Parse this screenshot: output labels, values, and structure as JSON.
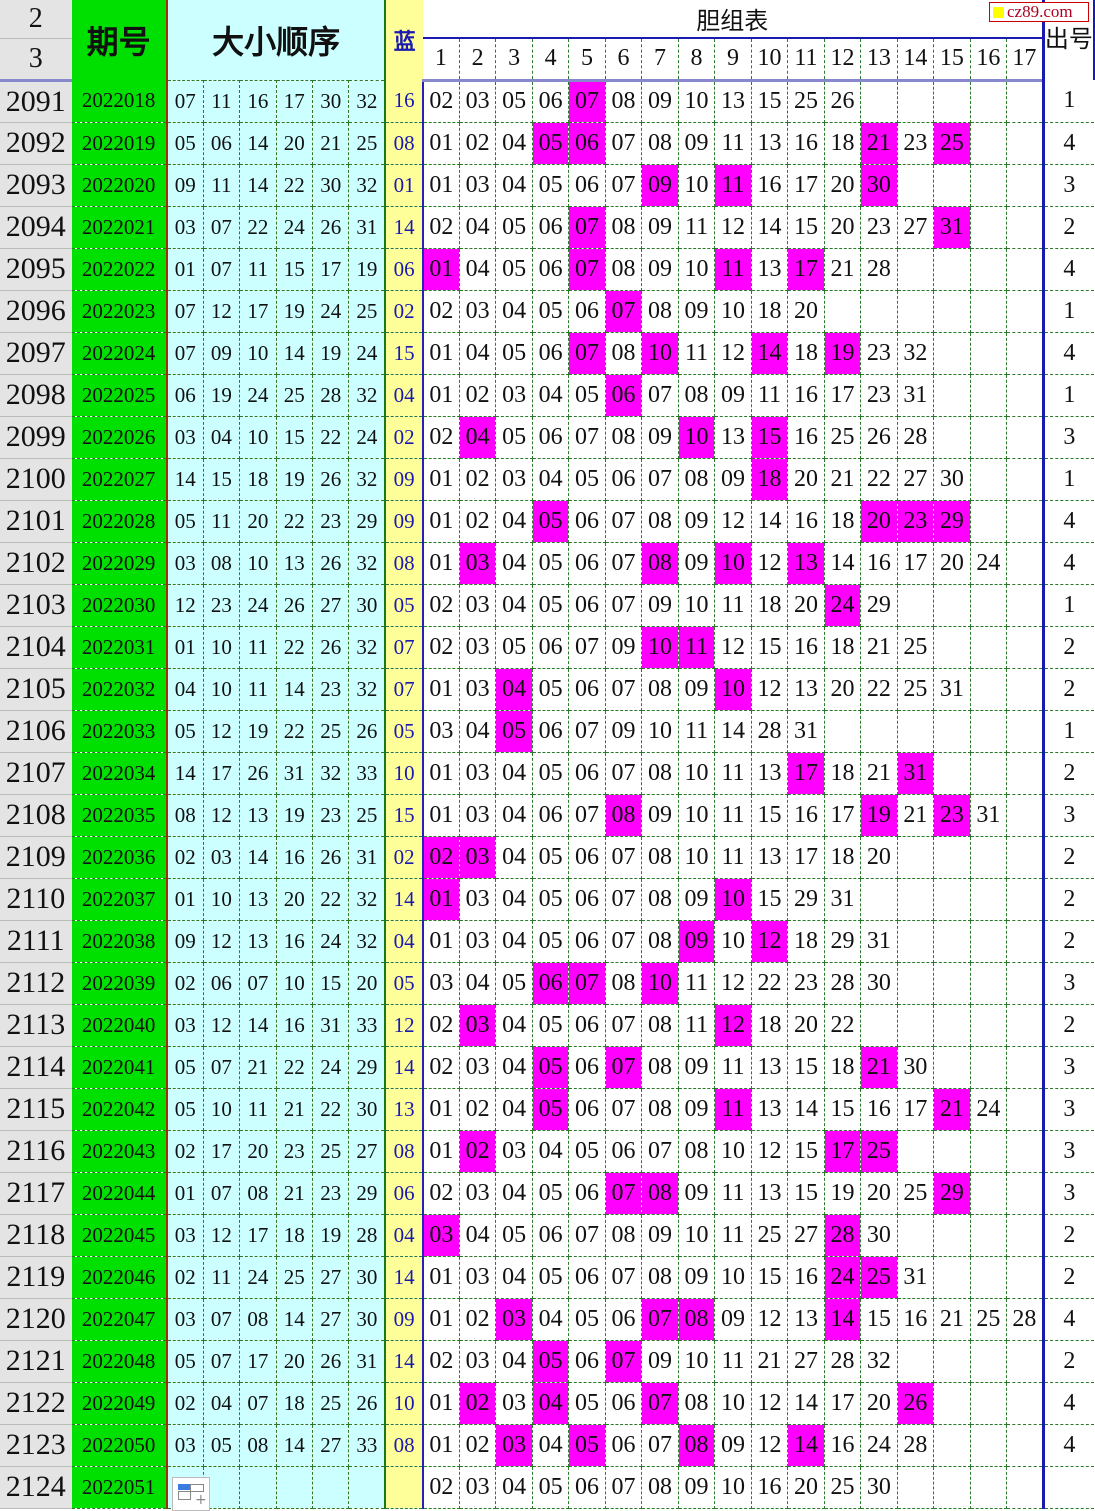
{
  "header": {
    "row_numbers": [
      "2",
      "3"
    ],
    "period_label": "期号",
    "order_label": "大小顺序",
    "blue_label": "蓝",
    "table_title": "胆组表",
    "column_numbers": [
      "1",
      "2",
      "3",
      "4",
      "5",
      "6",
      "7",
      "8",
      "9",
      "10",
      "11",
      "12",
      "13",
      "14",
      "15",
      "16",
      "17"
    ],
    "count_label": "出号"
  },
  "watermark": "cz89.com",
  "colors": {
    "highlight": "#ff00ff",
    "period_bg": "#00e000",
    "order_bg": "#ccffff",
    "blue_bg": "#ffff99"
  },
  "rows": [
    {
      "row": "2091",
      "period": "2022018",
      "draw": [
        "07",
        "11",
        "16",
        "17",
        "30",
        "32"
      ],
      "blue": "16",
      "group": [
        "02",
        "03",
        "05",
        "06",
        "07",
        "08",
        "09",
        "10",
        "13",
        "15",
        "25",
        "26"
      ],
      "count": "1"
    },
    {
      "row": "2092",
      "period": "2022019",
      "draw": [
        "05",
        "06",
        "14",
        "20",
        "21",
        "25"
      ],
      "blue": "08",
      "group": [
        "01",
        "02",
        "04",
        "05",
        "06",
        "07",
        "08",
        "09",
        "11",
        "13",
        "16",
        "18",
        "21",
        "23",
        "25"
      ],
      "count": "4"
    },
    {
      "row": "2093",
      "period": "2022020",
      "draw": [
        "09",
        "11",
        "14",
        "22",
        "30",
        "32"
      ],
      "blue": "01",
      "group": [
        "01",
        "03",
        "04",
        "05",
        "06",
        "07",
        "09",
        "10",
        "11",
        "16",
        "17",
        "20",
        "30"
      ],
      "count": "3"
    },
    {
      "row": "2094",
      "period": "2022021",
      "draw": [
        "03",
        "07",
        "22",
        "24",
        "26",
        "31"
      ],
      "blue": "14",
      "group": [
        "02",
        "04",
        "05",
        "06",
        "07",
        "08",
        "09",
        "11",
        "12",
        "14",
        "15",
        "20",
        "23",
        "27",
        "31"
      ],
      "count": "2"
    },
    {
      "row": "2095",
      "period": "2022022",
      "draw": [
        "01",
        "07",
        "11",
        "15",
        "17",
        "19"
      ],
      "blue": "06",
      "group": [
        "01",
        "04",
        "05",
        "06",
        "07",
        "08",
        "09",
        "10",
        "11",
        "13",
        "17",
        "21",
        "28"
      ],
      "count": "4"
    },
    {
      "row": "2096",
      "period": "2022023",
      "draw": [
        "07",
        "12",
        "17",
        "19",
        "24",
        "25"
      ],
      "blue": "02",
      "group": [
        "02",
        "03",
        "04",
        "05",
        "06",
        "07",
        "08",
        "09",
        "10",
        "18",
        "20"
      ],
      "count": "1"
    },
    {
      "row": "2097",
      "period": "2022024",
      "draw": [
        "07",
        "09",
        "10",
        "14",
        "19",
        "24"
      ],
      "blue": "15",
      "group": [
        "01",
        "04",
        "05",
        "06",
        "07",
        "08",
        "10",
        "11",
        "12",
        "14",
        "18",
        "19",
        "23",
        "32"
      ],
      "count": "4"
    },
    {
      "row": "2098",
      "period": "2022025",
      "draw": [
        "06",
        "19",
        "24",
        "25",
        "28",
        "32"
      ],
      "blue": "04",
      "group": [
        "01",
        "02",
        "03",
        "04",
        "05",
        "06",
        "07",
        "08",
        "09",
        "11",
        "16",
        "17",
        "23",
        "31"
      ],
      "count": "1"
    },
    {
      "row": "2099",
      "period": "2022026",
      "draw": [
        "03",
        "04",
        "10",
        "15",
        "22",
        "24"
      ],
      "blue": "02",
      "group": [
        "02",
        "04",
        "05",
        "06",
        "07",
        "08",
        "09",
        "10",
        "13",
        "15",
        "16",
        "25",
        "26",
        "28"
      ],
      "count": "3"
    },
    {
      "row": "2100",
      "period": "2022027",
      "draw": [
        "14",
        "15",
        "18",
        "19",
        "26",
        "32"
      ],
      "blue": "09",
      "group": [
        "01",
        "02",
        "03",
        "04",
        "05",
        "06",
        "07",
        "08",
        "09",
        "18",
        "20",
        "21",
        "22",
        "27",
        "30"
      ],
      "count": "1"
    },
    {
      "row": "2101",
      "period": "2022028",
      "draw": [
        "05",
        "11",
        "20",
        "22",
        "23",
        "29"
      ],
      "blue": "09",
      "group": [
        "01",
        "02",
        "04",
        "05",
        "06",
        "07",
        "08",
        "09",
        "12",
        "14",
        "16",
        "18",
        "20",
        "23",
        "29"
      ],
      "count": "4"
    },
    {
      "row": "2102",
      "period": "2022029",
      "draw": [
        "03",
        "08",
        "10",
        "13",
        "26",
        "32"
      ],
      "blue": "08",
      "group": [
        "01",
        "03",
        "04",
        "05",
        "06",
        "07",
        "08",
        "09",
        "10",
        "12",
        "13",
        "14",
        "16",
        "17",
        "20",
        "24"
      ],
      "count": "4"
    },
    {
      "row": "2103",
      "period": "2022030",
      "draw": [
        "12",
        "23",
        "24",
        "26",
        "27",
        "30"
      ],
      "blue": "05",
      "group": [
        "02",
        "03",
        "04",
        "05",
        "06",
        "07",
        "09",
        "10",
        "11",
        "18",
        "20",
        "24",
        "29"
      ],
      "count": "1"
    },
    {
      "row": "2104",
      "period": "2022031",
      "draw": [
        "01",
        "10",
        "11",
        "22",
        "26",
        "32"
      ],
      "blue": "07",
      "group": [
        "02",
        "03",
        "05",
        "06",
        "07",
        "09",
        "10",
        "11",
        "12",
        "15",
        "16",
        "18",
        "21",
        "25"
      ],
      "count": "2"
    },
    {
      "row": "2105",
      "period": "2022032",
      "draw": [
        "04",
        "10",
        "11",
        "14",
        "23",
        "32"
      ],
      "blue": "07",
      "group": [
        "01",
        "03",
        "04",
        "05",
        "06",
        "07",
        "08",
        "09",
        "10",
        "12",
        "13",
        "20",
        "22",
        "25",
        "31"
      ],
      "count": "2"
    },
    {
      "row": "2106",
      "period": "2022033",
      "draw": [
        "05",
        "12",
        "19",
        "22",
        "25",
        "26"
      ],
      "blue": "05",
      "group": [
        "03",
        "04",
        "05",
        "06",
        "07",
        "09",
        "10",
        "11",
        "14",
        "28",
        "31"
      ],
      "count": "1"
    },
    {
      "row": "2107",
      "period": "2022034",
      "draw": [
        "14",
        "17",
        "26",
        "31",
        "32",
        "33"
      ],
      "blue": "10",
      "group": [
        "01",
        "03",
        "04",
        "05",
        "06",
        "07",
        "08",
        "10",
        "11",
        "13",
        "17",
        "18",
        "21",
        "31"
      ],
      "count": "2"
    },
    {
      "row": "2108",
      "period": "2022035",
      "draw": [
        "08",
        "12",
        "13",
        "19",
        "23",
        "25"
      ],
      "blue": "15",
      "group": [
        "01",
        "03",
        "04",
        "06",
        "07",
        "08",
        "09",
        "10",
        "11",
        "15",
        "16",
        "17",
        "19",
        "21",
        "23",
        "31"
      ],
      "count": "3"
    },
    {
      "row": "2109",
      "period": "2022036",
      "draw": [
        "02",
        "03",
        "14",
        "16",
        "26",
        "31"
      ],
      "blue": "02",
      "group": [
        "02",
        "03",
        "04",
        "05",
        "06",
        "07",
        "08",
        "10",
        "11",
        "13",
        "17",
        "18",
        "20"
      ],
      "count": "2"
    },
    {
      "row": "2110",
      "period": "2022037",
      "draw": [
        "01",
        "10",
        "13",
        "20",
        "22",
        "32"
      ],
      "blue": "14",
      "group": [
        "01",
        "03",
        "04",
        "05",
        "06",
        "07",
        "08",
        "09",
        "10",
        "15",
        "29",
        "31"
      ],
      "count": "2"
    },
    {
      "row": "2111",
      "period": "2022038",
      "draw": [
        "09",
        "12",
        "13",
        "16",
        "24",
        "32"
      ],
      "blue": "04",
      "group": [
        "01",
        "03",
        "04",
        "05",
        "06",
        "07",
        "08",
        "09",
        "10",
        "12",
        "18",
        "29",
        "31"
      ],
      "count": "2"
    },
    {
      "row": "2112",
      "period": "2022039",
      "draw": [
        "02",
        "06",
        "07",
        "10",
        "15",
        "20"
      ],
      "blue": "05",
      "group": [
        "03",
        "04",
        "05",
        "06",
        "07",
        "08",
        "10",
        "11",
        "12",
        "22",
        "23",
        "28",
        "30"
      ],
      "count": "3"
    },
    {
      "row": "2113",
      "period": "2022040",
      "draw": [
        "03",
        "12",
        "14",
        "16",
        "31",
        "33"
      ],
      "blue": "12",
      "group": [
        "02",
        "03",
        "04",
        "05",
        "06",
        "07",
        "08",
        "11",
        "12",
        "18",
        "20",
        "22"
      ],
      "count": "2"
    },
    {
      "row": "2114",
      "period": "2022041",
      "draw": [
        "05",
        "07",
        "21",
        "22",
        "24",
        "29"
      ],
      "blue": "14",
      "group": [
        "02",
        "03",
        "04",
        "05",
        "06",
        "07",
        "08",
        "09",
        "11",
        "13",
        "15",
        "18",
        "21",
        "30"
      ],
      "count": "3"
    },
    {
      "row": "2115",
      "period": "2022042",
      "draw": [
        "05",
        "10",
        "11",
        "21",
        "22",
        "30"
      ],
      "blue": "13",
      "group": [
        "01",
        "02",
        "04",
        "05",
        "06",
        "07",
        "08",
        "09",
        "11",
        "13",
        "14",
        "15",
        "16",
        "17",
        "21",
        "24"
      ],
      "count": "3"
    },
    {
      "row": "2116",
      "period": "2022043",
      "draw": [
        "02",
        "17",
        "20",
        "23",
        "25",
        "27"
      ],
      "blue": "08",
      "group": [
        "01",
        "02",
        "03",
        "04",
        "05",
        "06",
        "07",
        "08",
        "10",
        "12",
        "15",
        "17",
        "25"
      ],
      "count": "3"
    },
    {
      "row": "2117",
      "period": "2022044",
      "draw": [
        "01",
        "07",
        "08",
        "21",
        "23",
        "29"
      ],
      "blue": "06",
      "group": [
        "02",
        "03",
        "04",
        "05",
        "06",
        "07",
        "08",
        "09",
        "11",
        "13",
        "15",
        "19",
        "20",
        "25",
        "29"
      ],
      "count": "3"
    },
    {
      "row": "2118",
      "period": "2022045",
      "draw": [
        "03",
        "12",
        "17",
        "18",
        "19",
        "28"
      ],
      "blue": "04",
      "group": [
        "03",
        "04",
        "05",
        "06",
        "07",
        "08",
        "09",
        "10",
        "11",
        "25",
        "27",
        "28",
        "30"
      ],
      "count": "2"
    },
    {
      "row": "2119",
      "period": "2022046",
      "draw": [
        "02",
        "11",
        "24",
        "25",
        "27",
        "30"
      ],
      "blue": "14",
      "group": [
        "01",
        "03",
        "04",
        "05",
        "06",
        "07",
        "08",
        "09",
        "10",
        "15",
        "16",
        "24",
        "25",
        "31"
      ],
      "count": "2"
    },
    {
      "row": "2120",
      "period": "2022047",
      "draw": [
        "03",
        "07",
        "08",
        "14",
        "27",
        "30"
      ],
      "blue": "09",
      "group": [
        "01",
        "02",
        "03",
        "04",
        "05",
        "06",
        "07",
        "08",
        "09",
        "12",
        "13",
        "14",
        "15",
        "16",
        "21",
        "25",
        "28"
      ],
      "count": "4"
    },
    {
      "row": "2121",
      "period": "2022048",
      "draw": [
        "05",
        "07",
        "17",
        "20",
        "26",
        "31"
      ],
      "blue": "14",
      "group": [
        "02",
        "03",
        "04",
        "05",
        "06",
        "07",
        "09",
        "10",
        "11",
        "21",
        "27",
        "28",
        "32"
      ],
      "count": "2"
    },
    {
      "row": "2122",
      "period": "2022049",
      "draw": [
        "02",
        "04",
        "07",
        "18",
        "25",
        "26"
      ],
      "blue": "10",
      "group": [
        "01",
        "02",
        "03",
        "04",
        "05",
        "06",
        "07",
        "08",
        "10",
        "12",
        "14",
        "17",
        "20",
        "26"
      ],
      "count": "4"
    },
    {
      "row": "2123",
      "period": "2022050",
      "draw": [
        "03",
        "05",
        "08",
        "14",
        "27",
        "33"
      ],
      "blue": "08",
      "group": [
        "01",
        "02",
        "03",
        "04",
        "05",
        "06",
        "07",
        "08",
        "09",
        "12",
        "14",
        "16",
        "24",
        "28"
      ],
      "count": "4"
    },
    {
      "row": "2124",
      "period": "2022051",
      "draw": [
        "",
        "",
        "",
        "",
        "",
        ""
      ],
      "blue": "",
      "group": [
        "02",
        "03",
        "04",
        "05",
        "06",
        "07",
        "08",
        "09",
        "10",
        "16",
        "20",
        "25",
        "30"
      ],
      "count": ""
    }
  ]
}
